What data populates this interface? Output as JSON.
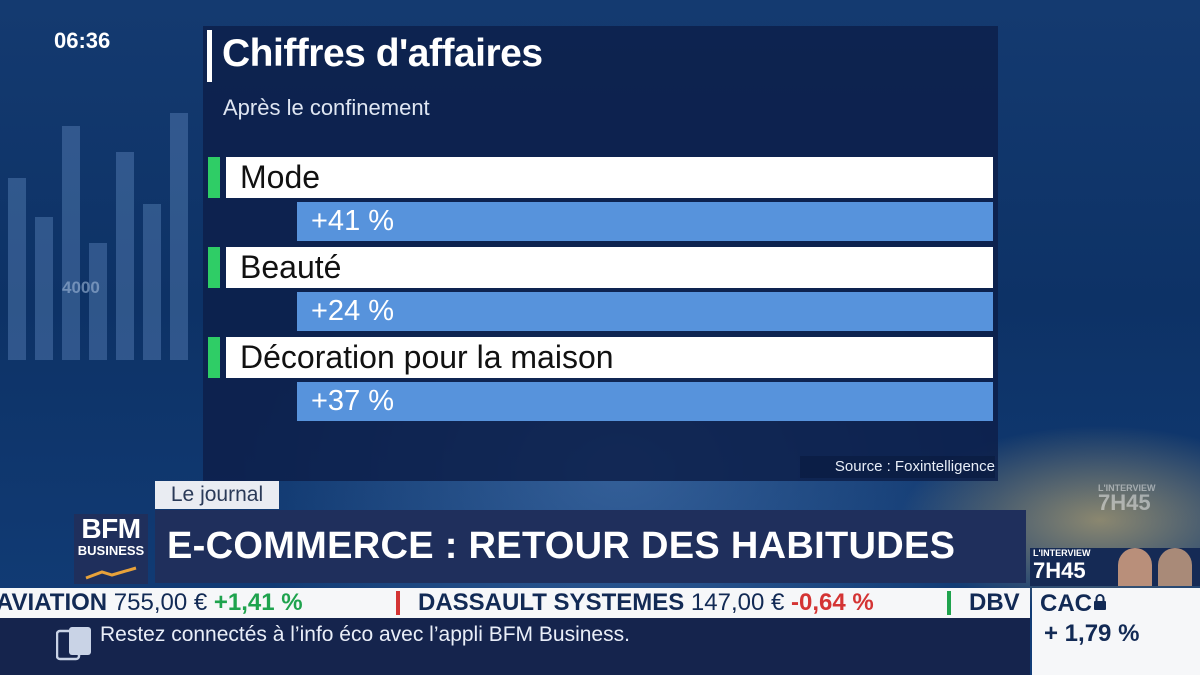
{
  "clock": "06:36",
  "background": {
    "watermark_number": "4000",
    "bar_heights": [
      0.7,
      0.55,
      0.9,
      0.45,
      0.8,
      0.6,
      0.95
    ]
  },
  "graphic": {
    "title": "Chiffres d'affaires",
    "subtitle": "Après le confinement",
    "rows": [
      {
        "label": "Mode",
        "value": "+41 %"
      },
      {
        "label": "Beauté",
        "value": "+24 %"
      },
      {
        "label": "Décoration pour la maison",
        "value": "+37 %"
      }
    ],
    "source": "Source : Foxintelligence"
  },
  "lower_third": {
    "tag": "Le journal",
    "headline": "E-COMMERCE : RETOUR DES HABITUDES"
  },
  "logo": {
    "line1": "BFM",
    "line2": "BUSINESS"
  },
  "promo": {
    "kicker": "L'INTERVIEW",
    "time": "7H45"
  },
  "ticker": [
    {
      "name": "AVIATION",
      "price": "755,00 €",
      "change": "+1,41 %",
      "direction": "up"
    },
    {
      "name": "DASSAULT SYSTEMES",
      "price": "147,00 €",
      "change": "-0,64 %",
      "direction": "down"
    },
    {
      "name": "DBV",
      "price": "",
      "change": "",
      "direction": "up"
    }
  ],
  "index": {
    "name": "CAC",
    "change": "+ 1,79 %"
  },
  "info_bar": {
    "text": "Restez connectés à l’info éco avec l’appli BFM Business."
  },
  "colors": {
    "accent_green": "#2fcd66",
    "value_blue": "#5793dc",
    "up": "#1fa34e",
    "down": "#d43434"
  },
  "icons": {
    "phone": "smartphone-icon",
    "lock": "lock-icon"
  }
}
